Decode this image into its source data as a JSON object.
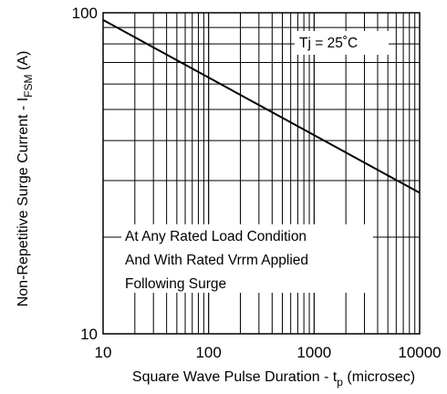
{
  "chart_data": {
    "type": "line",
    "xscale": "log",
    "yscale": "log",
    "xlim": [
      10,
      10000
    ],
    "ylim": [
      10,
      100
    ],
    "grid": true,
    "xticks": [
      "10",
      "100",
      "1000",
      "10000"
    ],
    "yticks": [
      "10",
      "100"
    ],
    "xlabel": {
      "main": "Square Wave Pulse Duration - t",
      "sub": "p",
      "suffix": " (microsec)"
    },
    "ylabel": {
      "main": "Non-Repetitive Surge Current - I",
      "sub": "FSM",
      "suffix": " (A)"
    },
    "series": [
      {
        "x": [
          10,
          10000
        ],
        "y": [
          95,
          27.5
        ]
      }
    ],
    "annotations": {
      "tj": "Tj = 25˚C",
      "condition": [
        "At Any Rated Load Condition",
        "And With Rated Vrrm Applied",
        "Following Surge"
      ]
    },
    "colors": {
      "line": "#000000",
      "grid": "#000000",
      "background": "#ffffff"
    }
  }
}
